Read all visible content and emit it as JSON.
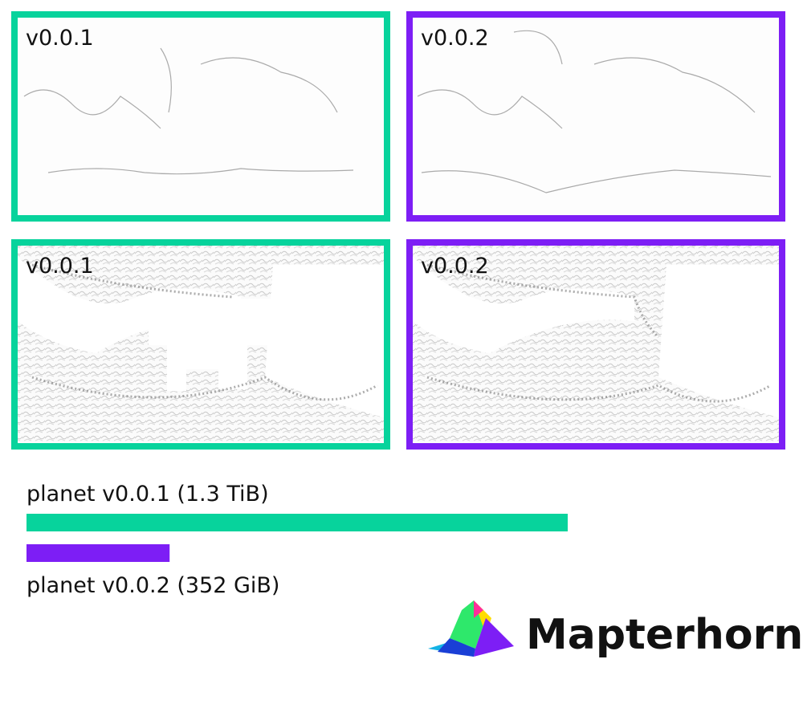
{
  "panels": [
    {
      "label": "v0.0.1",
      "color": "#07d39c"
    },
    {
      "label": "v0.0.2",
      "color": "#7d1ef5"
    },
    {
      "label": "v0.0.1",
      "color": "#07d39c"
    },
    {
      "label": "v0.0.2",
      "color": "#7d1ef5"
    }
  ],
  "chart_data": {
    "type": "bar",
    "orientation": "horizontal",
    "categories": [
      "planet v0.0.1 (1.3 TiB)",
      "planet v0.0.2 (352 GiB)"
    ],
    "values": [
      1331.2,
      352
    ],
    "colors": [
      "#07d39c",
      "#7d1ef5"
    ]
  },
  "logo": {
    "text": "Mapterhorn"
  }
}
